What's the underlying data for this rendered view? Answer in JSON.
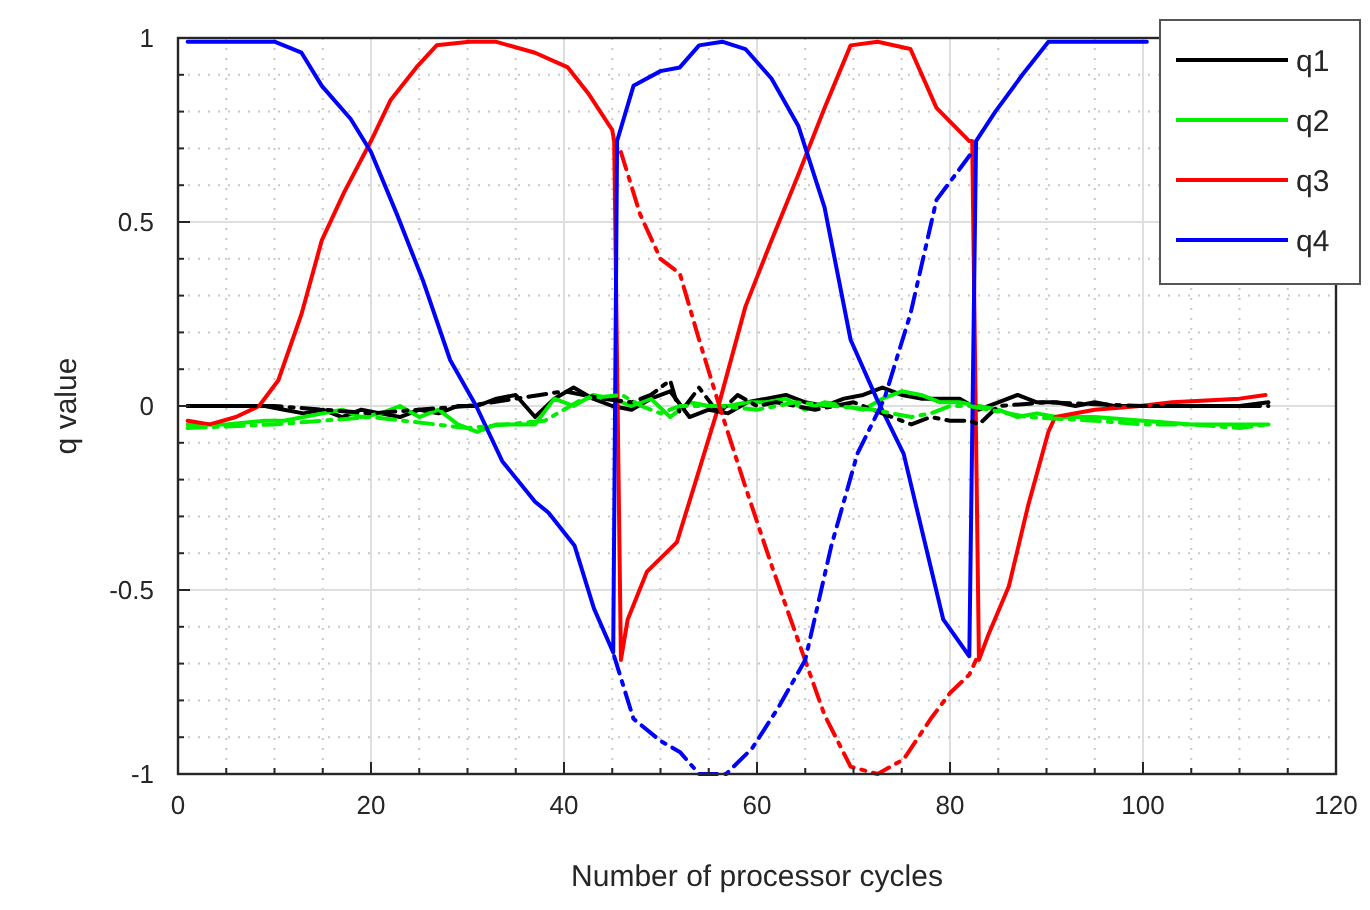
{
  "chart_data": {
    "type": "line",
    "xlabel": "Number of processor cycles",
    "ylabel": "q value",
    "xlim": [
      0,
      120
    ],
    "ylim": [
      -1,
      1
    ],
    "xticks": [
      0,
      {
        "value": 5,
        "label": null
      },
      {
        "value": 10,
        "label": null
      },
      {
        "value": 15,
        "label": null
      },
      20,
      {
        "value": 25,
        "label": null
      },
      {
        "value": 30,
        "label": null
      },
      {
        "value": 35,
        "label": null
      },
      40,
      {
        "value": 45,
        "label": null
      },
      {
        "value": 50,
        "label": null
      },
      {
        "value": 55,
        "label": null
      },
      60,
      {
        "value": 65,
        "label": null
      },
      {
        "value": 70,
        "label": null
      },
      {
        "value": 75,
        "label": null
      },
      80,
      {
        "value": 85,
        "label": null
      },
      {
        "value": 90,
        "label": null
      },
      {
        "value": 95,
        "label": null
      },
      100,
      {
        "value": 105,
        "label": null
      },
      {
        "value": 110,
        "label": null
      },
      {
        "value": 115,
        "label": null
      },
      120
    ],
    "yticks": [
      -1,
      {
        "value": -0.9,
        "label": null
      },
      {
        "value": -0.8,
        "label": null
      },
      {
        "value": -0.7,
        "label": null
      },
      {
        "value": -0.6,
        "label": null
      },
      -0.5,
      {
        "value": -0.4,
        "label": null
      },
      {
        "value": -0.3,
        "label": null
      },
      {
        "value": -0.2,
        "label": null
      },
      {
        "value": -0.1,
        "label": null
      },
      0,
      {
        "value": 0.1,
        "label": null
      },
      {
        "value": 0.2,
        "label": null
      },
      {
        "value": 0.3,
        "label": null
      },
      {
        "value": 0.4,
        "label": null
      },
      0.5,
      {
        "value": 0.6,
        "label": null
      },
      {
        "value": 0.7,
        "label": null
      },
      {
        "value": 0.8,
        "label": null
      },
      {
        "value": 0.9,
        "label": null
      },
      1
    ],
    "grid": true,
    "legend": "top right",
    "series": [
      {
        "name": "q1",
        "color": "#000000",
        "line_style": "solid",
        "x": [
          1,
          9,
          11,
          13,
          15,
          17,
          19,
          21,
          23,
          25,
          27,
          29,
          31,
          33,
          35,
          37,
          39,
          41,
          43,
          45,
          47,
          49,
          51,
          53,
          55,
          57,
          59,
          61,
          63,
          65,
          67,
          69,
          71,
          73,
          75,
          77,
          79,
          81,
          83,
          85,
          87,
          89,
          91,
          93,
          95,
          97,
          100,
          105,
          110,
          113
        ],
        "values": [
          0,
          0,
          -0.01,
          -0.02,
          -0.01,
          -0.03,
          -0.01,
          -0.02,
          -0.03,
          -0.01,
          -0.02,
          0,
          0,
          0.02,
          0.03,
          -0.03,
          0.02,
          0.05,
          0.02,
          0,
          -0.01,
          0.02,
          0.04,
          -0.03,
          -0.01,
          -0.02,
          0.01,
          0.02,
          0.03,
          0.01,
          0,
          0.02,
          0.03,
          0.05,
          0.03,
          0.02,
          0.02,
          0.02,
          -0.01,
          0.01,
          0.03,
          0.01,
          0.01,
          0,
          0.01,
          0,
          0,
          0,
          0,
          0.01
        ]
      },
      {
        "name": "q2",
        "color": "#00ee00",
        "line_style": "solid",
        "x": [
          1,
          5,
          9,
          11,
          13,
          15,
          17,
          19,
          21,
          23,
          25,
          27,
          29,
          31,
          33,
          35,
          37,
          39,
          41,
          43,
          45,
          47,
          49,
          51,
          53,
          55,
          57,
          59,
          61,
          63,
          65,
          67,
          69,
          71,
          73,
          75,
          77,
          79,
          81,
          83,
          85,
          87,
          89,
          91,
          95,
          100,
          105,
          110,
          113
        ],
        "values": [
          -0.05,
          -0.05,
          -0.04,
          -0.04,
          -0.03,
          -0.02,
          -0.01,
          -0.03,
          -0.02,
          0,
          -0.03,
          -0.01,
          -0.05,
          -0.07,
          -0.05,
          -0.05,
          -0.05,
          0.02,
          0,
          0.03,
          0.02,
          0,
          0.02,
          -0.03,
          0.01,
          0,
          0,
          0.01,
          0.01,
          0.02,
          -0.01,
          0.01,
          0,
          -0.01,
          0.02,
          0.04,
          0.03,
          0.01,
          0.01,
          0,
          -0.01,
          -0.03,
          -0.02,
          -0.03,
          -0.03,
          -0.04,
          -0.05,
          -0.05,
          -0.05
        ]
      },
      {
        "name": "q3",
        "color": "#ff0000",
        "line_style": "solid",
        "x": [
          1,
          3.3,
          6,
          8.4,
          10.4,
          12.8,
          14.9,
          17.2,
          20,
          22,
          24.7,
          26.8,
          30.2,
          32.9,
          37,
          40.4,
          42.5,
          45,
          45.2,
          45.9,
          46.6,
          48.6,
          51.7,
          53.7,
          55.8,
          58.8,
          61.5,
          64.3,
          67,
          69.7,
          72.5,
          75.9,
          78.6,
          82,
          82.3,
          83,
          84,
          86.1,
          88.1,
          90.2,
          90.9,
          95,
          99.7,
          103,
          110,
          112.7
        ],
        "values": [
          -0.04,
          -0.05,
          -0.03,
          0,
          0.07,
          0.25,
          0.45,
          0.58,
          0.72,
          0.83,
          0.92,
          0.98,
          0.99,
          0.99,
          0.96,
          0.92,
          0.85,
          0.75,
          0.72,
          -0.69,
          -0.58,
          -0.45,
          -0.37,
          -0.2,
          -0.02,
          0.27,
          0.45,
          0.63,
          0.81,
          0.98,
          0.99,
          0.97,
          0.81,
          0.72,
          0.72,
          -0.69,
          -0.62,
          -0.49,
          -0.27,
          -0.07,
          -0.03,
          -0.01,
          0,
          0.01,
          0.02,
          0.03
        ]
      },
      {
        "name": "q4",
        "color": "#0000ff",
        "line_style": "solid",
        "x": [
          1,
          10,
          12.8,
          14.9,
          17.9,
          20,
          22.7,
          25.4,
          28.2,
          30.9,
          33.6,
          37,
          38.4,
          41.1,
          43.1,
          45.1,
          45.5,
          47.2,
          50,
          52,
          54,
          56.4,
          58.8,
          61.5,
          64.3,
          67,
          69.7,
          72.4,
          75.2,
          77.2,
          79.3,
          82,
          82.7,
          84.7,
          87.5,
          90.2,
          100.4
        ],
        "values": [
          0.99,
          0.99,
          0.96,
          0.87,
          0.78,
          0.69,
          0.52,
          0.34,
          0.125,
          0,
          -0.15,
          -0.26,
          -0.29,
          -0.38,
          -0.55,
          -0.67,
          0.72,
          0.87,
          0.91,
          0.92,
          0.98,
          0.99,
          0.97,
          0.89,
          0.76,
          0.54,
          0.18,
          0.02,
          -0.13,
          -0.35,
          -0.58,
          -0.68,
          0.72,
          0.8,
          0.9,
          0.99,
          0.99
        ]
      },
      {
        "color": "#000000",
        "line_style": "dashed",
        "x": [
          1,
          10,
          20,
          30,
          40,
          44,
          47,
          49,
          51,
          52,
          54,
          56,
          58,
          60,
          62,
          64,
          66,
          68,
          70,
          72,
          74,
          76,
          78,
          80,
          82,
          83,
          85,
          90,
          100,
          113
        ],
        "values": [
          0,
          0,
          -0.02,
          0,
          0.04,
          0.02,
          0.01,
          0.03,
          0.07,
          -0.02,
          0.05,
          -0.02,
          0.03,
          0,
          0.01,
          0,
          -0.01,
          0,
          0.01,
          -0.01,
          -0.03,
          -0.05,
          -0.03,
          -0.04,
          -0.04,
          -0.05,
          0,
          0.01,
          0,
          0
        ]
      },
      {
        "color": "#00ee00",
        "line_style": "dashed",
        "x": [
          1,
          10,
          20,
          30,
          38,
          42,
          46,
          48,
          50,
          52,
          56,
          60,
          64,
          68,
          72,
          74,
          76,
          78,
          80,
          82,
          84,
          88,
          95,
          100,
          105,
          110,
          113
        ],
        "values": [
          -0.06,
          -0.05,
          -0.03,
          -0.06,
          -0.04,
          0.02,
          0.03,
          0,
          -0.02,
          0,
          0,
          -0.01,
          0.01,
          0,
          -0.01,
          -0.02,
          -0.03,
          -0.02,
          0,
          0,
          -0.01,
          -0.03,
          -0.04,
          -0.05,
          -0.05,
          -0.06,
          -0.05
        ]
      },
      {
        "color": "#ff0000",
        "line_style": "dashed",
        "x": [
          45.9,
          47.9,
          50,
          52,
          54,
          56.1,
          58.8,
          61.6,
          64.3,
          67,
          69.7,
          72.5,
          75.2,
          78,
          80,
          82,
          82.7
        ],
        "values": [
          0.69,
          0.52,
          0.4,
          0.36,
          0.18,
          0,
          -0.22,
          -0.44,
          -0.64,
          -0.84,
          -0.98,
          -1,
          -0.96,
          -0.85,
          -0.78,
          -0.73,
          -0.69
        ]
      },
      {
        "color": "#0000ff",
        "line_style": "dashed",
        "x": [
          45.2,
          47.2,
          50,
          52,
          54,
          56.8,
          59.5,
          62.2,
          65,
          67.7,
          70.4,
          73.2,
          75.9,
          78.6,
          80.6,
          82.3
        ],
        "values": [
          -0.68,
          -0.85,
          -0.91,
          -0.94,
          -1,
          -1,
          -0.93,
          -0.82,
          -0.69,
          -0.38,
          -0.13,
          0.02,
          0.25,
          0.56,
          0.63,
          0.69
        ]
      }
    ]
  }
}
